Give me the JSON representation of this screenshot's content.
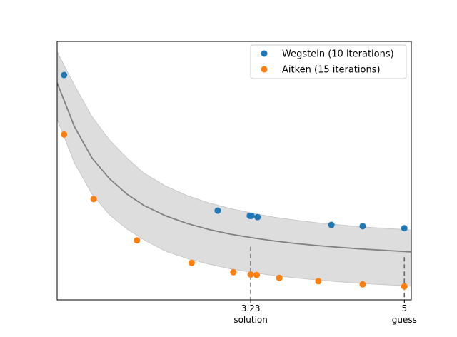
{
  "chart_data": {
    "type": "scatter",
    "xlim": [
      1.0,
      5.08
    ],
    "ylim": [
      0.0,
      1.0
    ],
    "x_ticks": [
      {
        "value": 3.23,
        "label": "3.23",
        "sublabel": "solution"
      },
      {
        "value": 5,
        "label": "5",
        "sublabel": "guess"
      }
    ],
    "y_ticks": [],
    "grid": false,
    "legend_placement": "top-right",
    "series": [
      {
        "name": "Wegstein (10 iterations)",
        "color": "#1f77b4",
        "x": [
          1.08,
          2.85,
          3.22,
          3.23,
          3.24,
          3.31,
          4.16,
          4.52,
          5.0
        ],
        "y": [
          0.87,
          0.345,
          0.325,
          0.325,
          0.325,
          0.32,
          0.29,
          0.285,
          0.277
        ]
      },
      {
        "name": "Aitken (15 iterations)",
        "color": "#ff7f0e",
        "x": [
          1.08,
          1.42,
          1.92,
          2.55,
          3.03,
          3.23,
          3.3,
          3.56,
          4.01,
          4.52,
          5.0
        ],
        "y": [
          0.64,
          0.39,
          0.23,
          0.143,
          0.107,
          0.098,
          0.096,
          0.085,
          0.072,
          0.06,
          0.052
        ]
      }
    ],
    "curve": {
      "color": "#808080",
      "x": [
        1.0,
        1.2,
        1.4,
        1.6,
        1.8,
        2.0,
        2.25,
        2.5,
        2.75,
        3.0,
        3.25,
        3.5,
        3.75,
        4.0,
        4.25,
        4.5,
        4.75,
        5.0,
        5.08
      ],
      "y": [
        0.84,
        0.67,
        0.55,
        0.47,
        0.41,
        0.365,
        0.325,
        0.295,
        0.272,
        0.254,
        0.24,
        0.228,
        0.218,
        0.21,
        0.203,
        0.197,
        0.192,
        0.187,
        0.185
      ]
    },
    "band": {
      "color": "#dddddd",
      "x": [
        1.0,
        1.2,
        1.4,
        1.6,
        1.8,
        2.0,
        2.25,
        2.5,
        2.75,
        3.0,
        3.25,
        3.5,
        3.75,
        4.0,
        4.25,
        4.5,
        4.75,
        5.0,
        5.08
      ],
      "upper": [
        0.96,
        0.83,
        0.71,
        0.62,
        0.55,
        0.49,
        0.44,
        0.403,
        0.375,
        0.353,
        0.335,
        0.32,
        0.308,
        0.298,
        0.29,
        0.283,
        0.277,
        0.272,
        0.27
      ],
      "lower": [
        0.7,
        0.53,
        0.41,
        0.33,
        0.275,
        0.232,
        0.188,
        0.16,
        0.138,
        0.12,
        0.106,
        0.094,
        0.085,
        0.077,
        0.07,
        0.064,
        0.059,
        0.055,
        0.053
      ]
    },
    "vlines": [
      {
        "x": 3.23,
        "y_top": 0.205
      },
      {
        "x": 5.0,
        "y_top": 0.165
      }
    ]
  }
}
